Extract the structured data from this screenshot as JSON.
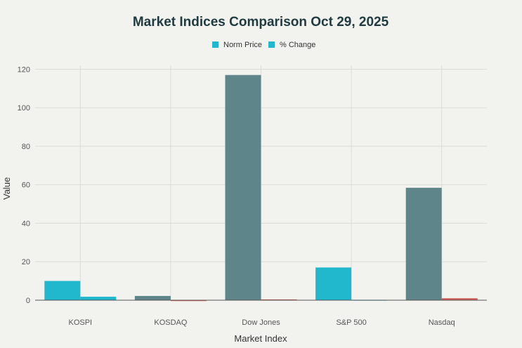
{
  "chart_data": {
    "type": "bar",
    "title": "Market Indices Comparison Oct 29, 2025",
    "xlabel": "Market Index",
    "ylabel": "Value",
    "categories": [
      "KOSPI",
      "KOSDAQ",
      "Dow Jones",
      "S&P 500",
      "Nasdaq"
    ],
    "series": [
      {
        "name": "Norm Price",
        "values": [
          10.0,
          2.2,
          117.0,
          17.0,
          58.4
        ]
      },
      {
        "name": "% Change",
        "values": [
          1.8,
          -0.3,
          0.4,
          0.2,
          1.0
        ]
      }
    ],
    "bar_colors": [
      [
        "#21b8cd",
        "#21b8cd"
      ],
      [
        "#5e868a",
        "#d05a55"
      ],
      [
        "#5e868a",
        "#d05a55"
      ],
      [
        "#21b8cd",
        "#21b8cd"
      ],
      [
        "#5e868a",
        "#d05a55"
      ]
    ],
    "legend_colors": [
      "#21b8cd",
      "#21b8cd"
    ],
    "yticks": [
      0,
      20,
      40,
      60,
      80,
      100,
      120
    ],
    "ylim": [
      0,
      122
    ],
    "grid": true,
    "legend_position": "top-center"
  }
}
